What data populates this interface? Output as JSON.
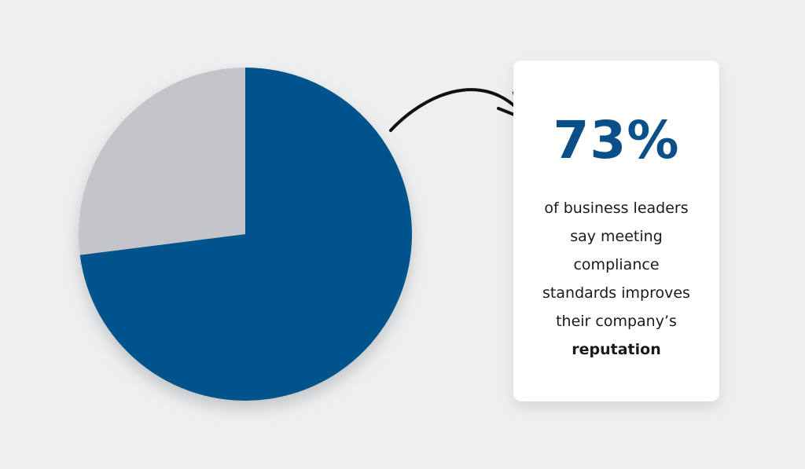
{
  "chart_data": {
    "type": "pie",
    "values": [
      73,
      27
    ],
    "value_labels": [
      "73%",
      null
    ],
    "colors": [
      "#04528b",
      "#c4c5c9"
    ],
    "annotation_lines": [
      "of business leaders",
      "say meeting",
      "compliance",
      "standards improves",
      "their company’s"
    ],
    "annotation_emphasis": "reputation"
  }
}
